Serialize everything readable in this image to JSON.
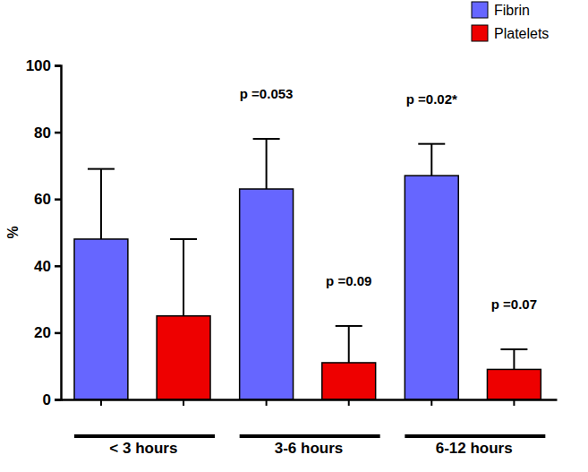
{
  "chart_data": {
    "type": "bar",
    "y_label": "%",
    "categories": [
      "< 3 hours",
      "3-6 hours",
      "6-12 hours"
    ],
    "series": [
      {
        "name": "Fibrin",
        "color": "#6666ff",
        "values": [
          48,
          63,
          67
        ],
        "errors": [
          21,
          15,
          9.5
        ]
      },
      {
        "name": "Platelets",
        "color": "#ee0000",
        "values": [
          25,
          11,
          9
        ],
        "errors": [
          23,
          11,
          6
        ]
      }
    ],
    "ylim": [
      0,
      100
    ],
    "yticks": [
      0,
      20,
      40,
      60,
      80,
      100
    ],
    "grid": false,
    "legend": "top-right",
    "annotations": [
      {
        "text": "p =0.053",
        "category": "3-6 hours",
        "series": "Fibrin"
      },
      {
        "text": "p =0.09",
        "category": "3-6 hours",
        "series": "Platelets"
      },
      {
        "text": "p =0.02*",
        "category": "6-12 hours",
        "series": "Fibrin"
      },
      {
        "text": "p =0.07",
        "category": "6-12 hours",
        "series": "Platelets"
      }
    ]
  }
}
